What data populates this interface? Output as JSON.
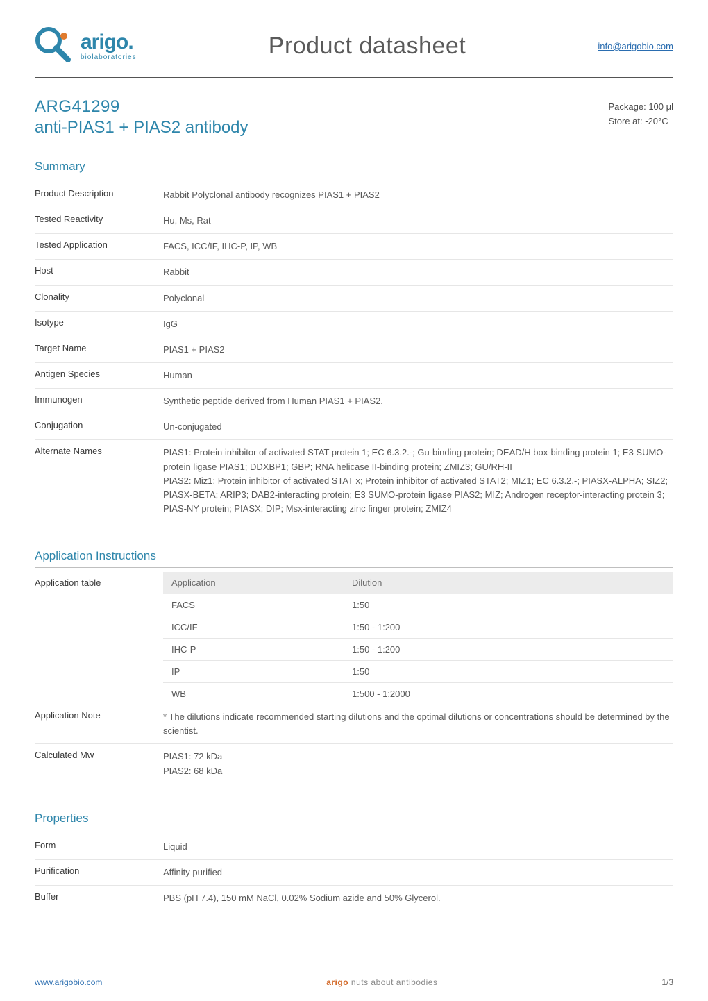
{
  "colors": {
    "accent": "#2e86ab",
    "rule": "#545454",
    "section_rule": "#bfbfbf",
    "row_rule": "#e6e6e6",
    "text_main": "#3a3a3a",
    "text_muted": "#595959",
    "email_blue": "#2a6db0",
    "tag_brand": "#d36a2a",
    "app_th_bg": "#ececec"
  },
  "header": {
    "brand_name": "arigo",
    "brand_sub": "biolaboratories",
    "title": "Product datasheet",
    "email": "info@arigobio.com"
  },
  "product": {
    "catno": "ARG41299",
    "name": "anti-PIAS1 + PIAS2 antibody",
    "package_label": "Package:",
    "package_value": "100 μl",
    "storage_label": "Store at:",
    "storage_value": "-20°C"
  },
  "summary": {
    "heading": "Summary",
    "rows": [
      {
        "k": "Product Description",
        "v": "Rabbit Polyclonal antibody recognizes PIAS1 + PIAS2"
      },
      {
        "k": "Tested Reactivity",
        "v": "Hu, Ms, Rat"
      },
      {
        "k": "Tested Application",
        "v": "FACS, ICC/IF, IHC-P, IP, WB"
      },
      {
        "k": "Host",
        "v": "Rabbit"
      },
      {
        "k": "Clonality",
        "v": "Polyclonal"
      },
      {
        "k": "Isotype",
        "v": "IgG"
      },
      {
        "k": "Target Name",
        "v": "PIAS1 + PIAS2"
      },
      {
        "k": "Antigen Species",
        "v": "Human"
      },
      {
        "k": "Immunogen",
        "v": "Synthetic peptide derived from Human PIAS1 + PIAS2."
      },
      {
        "k": "Conjugation",
        "v": "Un-conjugated"
      },
      {
        "k": "Alternate Names",
        "v": "PIAS1: Protein inhibitor of activated STAT protein 1; EC 6.3.2.-; Gu-binding protein; DEAD/H box-binding protein 1; E3 SUMO-protein ligase PIAS1; DDXBP1; GBP; RNA helicase II-binding protein; ZMIZ3; GU/RH-II\nPIAS2: Miz1; Protein inhibitor of activated STAT x; Protein inhibitor of activated STAT2; MIZ1; EC 6.3.2.-; PIASX-ALPHA; SIZ2; PIASX-BETA; ARIP3; DAB2-interacting protein; E3 SUMO-protein ligase PIAS2; MIZ; Androgen receptor-interacting protein 3; PIAS-NY protein; PIASX; DIP; Msx-interacting zinc finger protein; ZMIZ4"
      }
    ]
  },
  "app_instructions": {
    "heading": "Application Instructions",
    "table_label": "Application table",
    "th_app": "Application",
    "th_dil": "Dilution",
    "rows": [
      {
        "app": "FACS",
        "dil": "1:50"
      },
      {
        "app": "ICC/IF",
        "dil": "1:50 - 1:200"
      },
      {
        "app": "IHC-P",
        "dil": "1:50 - 1:200"
      },
      {
        "app": "IP",
        "dil": "1:50"
      },
      {
        "app": "WB",
        "dil": "1:500 - 1:2000"
      }
    ],
    "note_label": "Application Note",
    "note_value": "* The dilutions indicate recommended starting dilutions and the optimal dilutions or concentrations should be determined by the scientist.",
    "mw_label": "Calculated Mw",
    "mw_value": "PIAS1: 72 kDa\nPIAS2: 68 kDa"
  },
  "properties": {
    "heading": "Properties",
    "rows": [
      {
        "k": "Form",
        "v": "Liquid"
      },
      {
        "k": "Purification",
        "v": "Affinity purified"
      },
      {
        "k": "Buffer",
        "v": "PBS (pH 7.4), 150 mM NaCl, 0.02% Sodium azide and 50% Glycerol."
      }
    ]
  },
  "footer": {
    "site": "www.arigobio.com",
    "tagline_brand": "arigo",
    "tagline_rest": "nuts about antibodies",
    "page": "1/3"
  }
}
